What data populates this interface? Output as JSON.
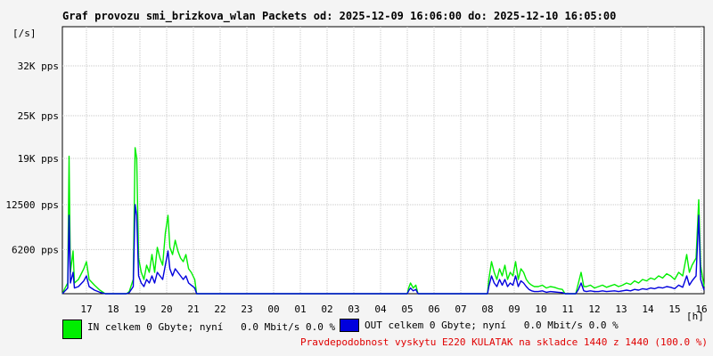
{
  "header": {
    "title": "Graf provozu smi_brizkova_wlan Packets od: 2025-12-09 16:06:00 do: 2025-12-10 16:05:00"
  },
  "legend": {
    "in_text": "IN celkem 0 Gbyte; nyní   0.0 Mbit/s 0.0 %",
    "out_text": "OUT celkem 0 Gbyte; nyní   0.0 Mbit/s 0.0 %"
  },
  "note": "Pravdepodobnost vyskytu E220 KULATAK na skladce 1440 z 1440 (100.0 %)",
  "colors": {
    "in": "#00ee00",
    "out": "#0000dd",
    "note": "#e00000",
    "grid": "#c8c8c8"
  },
  "chart_data": {
    "type": "line",
    "ylabel": "[/s]",
    "xlabel": "[h]",
    "yticks": [
      {
        "value": 6200,
        "label": "6200 pps"
      },
      {
        "value": 12500,
        "label": "12500 pps"
      },
      {
        "value": 19000,
        "label": "19K pps"
      },
      {
        "value": 25000,
        "label": "25K pps"
      },
      {
        "value": 32000,
        "label": "32K pps"
      }
    ],
    "ylim": [
      0,
      37500
    ],
    "xlim": [
      16.1,
      40.1
    ],
    "xticks": [
      {
        "value": 17,
        "label": "17"
      },
      {
        "value": 18,
        "label": "18"
      },
      {
        "value": 19,
        "label": "19"
      },
      {
        "value": 20,
        "label": "20"
      },
      {
        "value": 21,
        "label": "21"
      },
      {
        "value": 22,
        "label": "22"
      },
      {
        "value": 23,
        "label": "23"
      },
      {
        "value": 24,
        "label": "00"
      },
      {
        "value": 25,
        "label": "01"
      },
      {
        "value": 26,
        "label": "02"
      },
      {
        "value": 27,
        "label": "03"
      },
      {
        "value": 28,
        "label": "04"
      },
      {
        "value": 29,
        "label": "05"
      },
      {
        "value": 30,
        "label": "06"
      },
      {
        "value": 31,
        "label": "07"
      },
      {
        "value": 32,
        "label": "08"
      },
      {
        "value": 33,
        "label": "09"
      },
      {
        "value": 34,
        "label": "10"
      },
      {
        "value": 35,
        "label": "11"
      },
      {
        "value": 36,
        "label": "12"
      },
      {
        "value": 37,
        "label": "13"
      },
      {
        "value": 38,
        "label": "14"
      },
      {
        "value": 39,
        "label": "15"
      },
      {
        "value": 40,
        "label": "16"
      }
    ],
    "series": [
      {
        "name": "IN",
        "points": [
          [
            16.1,
            0
          ],
          [
            16.2,
            800
          ],
          [
            16.3,
            1500
          ],
          [
            16.35,
            19300
          ],
          [
            16.4,
            3000
          ],
          [
            16.5,
            6000
          ],
          [
            16.55,
            1500
          ],
          [
            16.7,
            2000
          ],
          [
            16.9,
            3500
          ],
          [
            17.0,
            4500
          ],
          [
            17.1,
            2000
          ],
          [
            17.3,
            1200
          ],
          [
            17.5,
            500
          ],
          [
            17.7,
            0
          ],
          [
            18.5,
            0
          ],
          [
            18.6,
            300
          ],
          [
            18.75,
            2000
          ],
          [
            18.82,
            20500
          ],
          [
            18.88,
            19000
          ],
          [
            18.95,
            5000
          ],
          [
            19.05,
            3000
          ],
          [
            19.15,
            2000
          ],
          [
            19.25,
            4000
          ],
          [
            19.35,
            3000
          ],
          [
            19.45,
            5500
          ],
          [
            19.55,
            3000
          ],
          [
            19.65,
            6500
          ],
          [
            19.75,
            5000
          ],
          [
            19.85,
            4000
          ],
          [
            19.95,
            8500
          ],
          [
            20.05,
            11000
          ],
          [
            20.12,
            6500
          ],
          [
            20.22,
            5500
          ],
          [
            20.32,
            7500
          ],
          [
            20.42,
            6000
          ],
          [
            20.52,
            5000
          ],
          [
            20.62,
            4500
          ],
          [
            20.72,
            5500
          ],
          [
            20.82,
            3500
          ],
          [
            20.92,
            3000
          ],
          [
            21.05,
            2000
          ],
          [
            21.12,
            0
          ],
          [
            29.0,
            0
          ],
          [
            29.05,
            800
          ],
          [
            29.12,
            1500
          ],
          [
            29.22,
            800
          ],
          [
            29.32,
            1200
          ],
          [
            29.4,
            0
          ],
          [
            32.0,
            0
          ],
          [
            32.05,
            2000
          ],
          [
            32.15,
            4500
          ],
          [
            32.25,
            3000
          ],
          [
            32.35,
            2000
          ],
          [
            32.45,
            3500
          ],
          [
            32.55,
            2500
          ],
          [
            32.65,
            4000
          ],
          [
            32.75,
            2000
          ],
          [
            32.85,
            3000
          ],
          [
            32.95,
            2500
          ],
          [
            33.05,
            4500
          ],
          [
            33.15,
            2000
          ],
          [
            33.25,
            3500
          ],
          [
            33.35,
            3000
          ],
          [
            33.45,
            2000
          ],
          [
            33.55,
            1500
          ],
          [
            33.65,
            1200
          ],
          [
            33.75,
            1000
          ],
          [
            33.9,
            1000
          ],
          [
            34.05,
            1200
          ],
          [
            34.2,
            800
          ],
          [
            34.35,
            1000
          ],
          [
            34.5,
            900
          ],
          [
            34.65,
            700
          ],
          [
            34.8,
            600
          ],
          [
            34.9,
            0
          ],
          [
            35.3,
            0
          ],
          [
            35.4,
            1500
          ],
          [
            35.5,
            3000
          ],
          [
            35.6,
            1000
          ],
          [
            35.7,
            1000
          ],
          [
            35.85,
            1200
          ],
          [
            36.0,
            800
          ],
          [
            36.15,
            1000
          ],
          [
            36.3,
            1200
          ],
          [
            36.45,
            900
          ],
          [
            36.6,
            1100
          ],
          [
            36.75,
            1300
          ],
          [
            36.9,
            1000
          ],
          [
            37.05,
            1200
          ],
          [
            37.2,
            1500
          ],
          [
            37.35,
            1300
          ],
          [
            37.5,
            1800
          ],
          [
            37.65,
            1500
          ],
          [
            37.8,
            2000
          ],
          [
            37.95,
            1800
          ],
          [
            38.1,
            2200
          ],
          [
            38.25,
            2000
          ],
          [
            38.4,
            2500
          ],
          [
            38.55,
            2200
          ],
          [
            38.7,
            2800
          ],
          [
            38.85,
            2500
          ],
          [
            39.0,
            2000
          ],
          [
            39.15,
            3000
          ],
          [
            39.3,
            2500
          ],
          [
            39.45,
            5500
          ],
          [
            39.55,
            3000
          ],
          [
            39.65,
            4000
          ],
          [
            39.8,
            5000
          ],
          [
            39.9,
            13200
          ],
          [
            39.97,
            4000
          ],
          [
            40.1,
            1000
          ]
        ]
      },
      {
        "name": "OUT",
        "points": [
          [
            16.1,
            0
          ],
          [
            16.2,
            400
          ],
          [
            16.3,
            800
          ],
          [
            16.35,
            11000
          ],
          [
            16.4,
            1500
          ],
          [
            16.5,
            3000
          ],
          [
            16.55,
            800
          ],
          [
            16.7,
            1000
          ],
          [
            16.9,
            1800
          ],
          [
            17.0,
            2500
          ],
          [
            17.1,
            1000
          ],
          [
            17.3,
            500
          ],
          [
            17.5,
            200
          ],
          [
            17.7,
            0
          ],
          [
            18.5,
            0
          ],
          [
            18.6,
            150
          ],
          [
            18.75,
            1000
          ],
          [
            18.82,
            12500
          ],
          [
            18.88,
            11000
          ],
          [
            18.95,
            2500
          ],
          [
            19.05,
            1500
          ],
          [
            19.15,
            1000
          ],
          [
            19.25,
            2000
          ],
          [
            19.35,
            1500
          ],
          [
            19.45,
            2500
          ],
          [
            19.55,
            1500
          ],
          [
            19.65,
            3000
          ],
          [
            19.75,
            2500
          ],
          [
            19.85,
            2000
          ],
          [
            19.95,
            4000
          ],
          [
            20.05,
            6000
          ],
          [
            20.12,
            3500
          ],
          [
            20.22,
            2500
          ],
          [
            20.32,
            3500
          ],
          [
            20.42,
            3000
          ],
          [
            20.52,
            2500
          ],
          [
            20.62,
            2000
          ],
          [
            20.72,
            2500
          ],
          [
            20.82,
            1500
          ],
          [
            20.92,
            1200
          ],
          [
            21.05,
            800
          ],
          [
            21.12,
            0
          ],
          [
            29.0,
            0
          ],
          [
            29.05,
            400
          ],
          [
            29.12,
            800
          ],
          [
            29.22,
            400
          ],
          [
            29.32,
            600
          ],
          [
            29.4,
            0
          ],
          [
            32.0,
            0
          ],
          [
            32.05,
            1000
          ],
          [
            32.15,
            2500
          ],
          [
            32.25,
            1500
          ],
          [
            32.35,
            1000
          ],
          [
            32.45,
            2000
          ],
          [
            32.55,
            1200
          ],
          [
            32.65,
            2000
          ],
          [
            32.75,
            1000
          ],
          [
            32.85,
            1500
          ],
          [
            32.95,
            1200
          ],
          [
            33.05,
            2500
          ],
          [
            33.15,
            1000
          ],
          [
            33.25,
            1800
          ],
          [
            33.35,
            1500
          ],
          [
            33.45,
            1000
          ],
          [
            33.55,
            600
          ],
          [
            33.65,
            400
          ],
          [
            33.75,
            300
          ],
          [
            33.9,
            300
          ],
          [
            34.05,
            400
          ],
          [
            34.2,
            200
          ],
          [
            34.35,
            300
          ],
          [
            34.5,
            250
          ],
          [
            34.65,
            200
          ],
          [
            34.8,
            150
          ],
          [
            34.9,
            0
          ],
          [
            35.3,
            0
          ],
          [
            35.4,
            600
          ],
          [
            35.5,
            1500
          ],
          [
            35.6,
            400
          ],
          [
            35.7,
            300
          ],
          [
            35.85,
            400
          ],
          [
            36.0,
            300
          ],
          [
            36.15,
            300
          ],
          [
            36.3,
            400
          ],
          [
            36.45,
            300
          ],
          [
            36.6,
            350
          ],
          [
            36.75,
            400
          ],
          [
            36.9,
            300
          ],
          [
            37.05,
            400
          ],
          [
            37.2,
            500
          ],
          [
            37.35,
            400
          ],
          [
            37.5,
            600
          ],
          [
            37.65,
            500
          ],
          [
            37.8,
            700
          ],
          [
            37.95,
            600
          ],
          [
            38.1,
            800
          ],
          [
            38.25,
            700
          ],
          [
            38.4,
            900
          ],
          [
            38.55,
            800
          ],
          [
            38.7,
            1000
          ],
          [
            38.85,
            900
          ],
          [
            39.0,
            700
          ],
          [
            39.15,
            1200
          ],
          [
            39.3,
            900
          ],
          [
            39.45,
            2500
          ],
          [
            39.55,
            1200
          ],
          [
            39.65,
            1800
          ],
          [
            39.8,
            2500
          ],
          [
            39.9,
            11000
          ],
          [
            39.97,
            2000
          ],
          [
            40.1,
            500
          ]
        ]
      }
    ]
  }
}
